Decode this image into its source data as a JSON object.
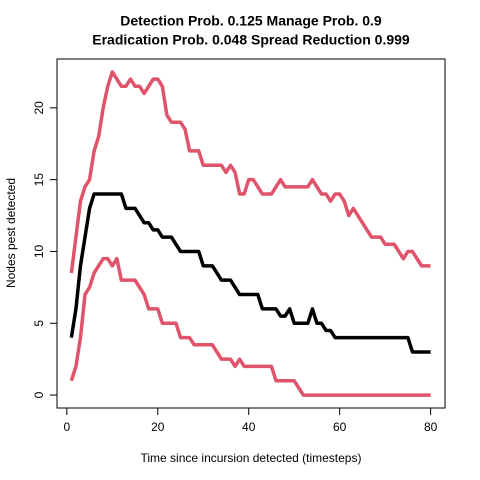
{
  "chart_data": {
    "type": "line",
    "title": [
      "Detection Prob. 0.125 Manage Prob. 0.9",
      "Eradication Prob. 0.048 Spread Reduction 0.999"
    ],
    "x_label": "Time since incursion detected (timesteps)",
    "y_label": "Nodes pest detected",
    "x": [
      1,
      2,
      3,
      4,
      5,
      6,
      7,
      8,
      9,
      10,
      11,
      12,
      13,
      14,
      15,
      16,
      17,
      18,
      19,
      20,
      21,
      22,
      23,
      24,
      25,
      26,
      27,
      28,
      29,
      30,
      31,
      32,
      33,
      34,
      35,
      36,
      37,
      38,
      39,
      40,
      41,
      42,
      43,
      44,
      45,
      46,
      47,
      48,
      49,
      50,
      51,
      52,
      53,
      54,
      55,
      56,
      57,
      58,
      59,
      60,
      61,
      62,
      63,
      64,
      65,
      66,
      67,
      68,
      69,
      70,
      71,
      72,
      73,
      74,
      75,
      76,
      77,
      78,
      79,
      80
    ],
    "series": [
      {
        "color": "#DF536B",
        "values": [
          8.5,
          11,
          13.5,
          14.5,
          15,
          17,
          18,
          20,
          21.5,
          22.5,
          22,
          21.5,
          21.5,
          22,
          21.5,
          21.5,
          21,
          21.5,
          22,
          22,
          21.5,
          19.5,
          19,
          19,
          19,
          18.5,
          17,
          17,
          17,
          16,
          16,
          16,
          16,
          16,
          15.5,
          16,
          15.5,
          14,
          14,
          15,
          15,
          14.5,
          14,
          14,
          14,
          14.5,
          15,
          14.5,
          14.5,
          14.5,
          14.5,
          14.5,
          14.5,
          15,
          14.5,
          14,
          14,
          13.5,
          14,
          14,
          13.5,
          12.5,
          13,
          12.5,
          12,
          11.5,
          11,
          11,
          11,
          10.5,
          10.5,
          10.5,
          10,
          9.5,
          10,
          10,
          9.5,
          9,
          9,
          9
        ]
      },
      {
        "color": "#000000",
        "values": [
          4,
          6,
          9,
          11,
          13,
          14,
          14,
          14,
          14,
          14,
          14,
          14,
          13,
          13,
          13,
          12.5,
          12,
          12,
          11.5,
          11.5,
          11,
          11,
          11,
          10.5,
          10,
          10,
          10,
          10,
          10,
          9,
          9,
          9,
          8.5,
          8,
          8,
          8,
          7.5,
          7,
          7,
          7,
          7,
          7,
          6,
          6,
          6,
          6,
          5.5,
          5.5,
          6,
          5,
          5,
          5,
          5,
          6,
          5,
          5,
          4.5,
          4.5,
          4,
          4,
          4,
          4,
          4,
          4,
          4,
          4,
          4,
          4,
          4,
          4,
          4,
          4,
          4,
          4,
          4,
          3,
          3,
          3,
          3,
          3
        ]
      },
      {
        "color": "#DF536B",
        "values": [
          1,
          2,
          4,
          7,
          7.5,
          8.5,
          9,
          9.5,
          9.5,
          9,
          9.5,
          8,
          8,
          8,
          8,
          7.5,
          7,
          6,
          6,
          6,
          5,
          5,
          5,
          5,
          4,
          4,
          4,
          3.5,
          3.5,
          3.5,
          3.5,
          3.5,
          3,
          2.5,
          2.5,
          2.5,
          2,
          2.5,
          2,
          2,
          2,
          2,
          2,
          2,
          2,
          1,
          1,
          1,
          1,
          1,
          0.5,
          0,
          0,
          0,
          0,
          0,
          0,
          0,
          0,
          0,
          0,
          0,
          0,
          0,
          0,
          0,
          0,
          0,
          0,
          0,
          0,
          0,
          0,
          0,
          0,
          0,
          0,
          0,
          0,
          0
        ]
      }
    ],
    "xlim": [
      -2.16,
      83.16
    ],
    "xticks": [
      0,
      20,
      40,
      60,
      80
    ],
    "ylim": [
      -0.9,
      23.4
    ],
    "yticks": [
      0,
      5,
      10,
      15,
      20
    ]
  }
}
